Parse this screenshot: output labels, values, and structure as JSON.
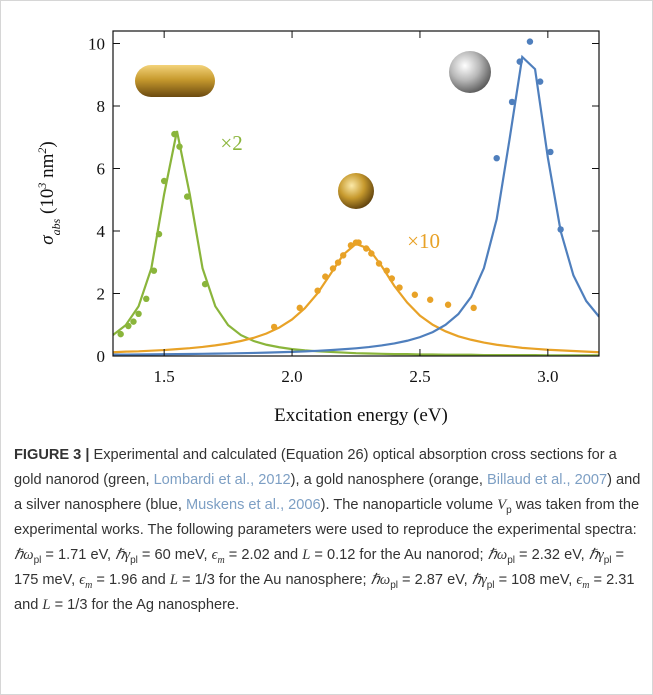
{
  "chart_data": {
    "type": "line",
    "xlabel": "Excitation energy (eV)",
    "ylabel": [
      {
        "text": "σ"
      },
      {
        "text": "abs",
        "shift": "sub"
      },
      {
        "text": " (10"
      },
      {
        "text": "3",
        "shift": "sup"
      },
      {
        "text": " nm"
      },
      {
        "text": "2",
        "shift": "sup"
      },
      {
        "text": ")"
      }
    ],
    "xlim": [
      1.3,
      3.2
    ],
    "ylim": [
      0,
      10.4
    ],
    "xticks": [
      1.5,
      {
        "value": 2,
        "label": "2.0"
      },
      2.5,
      {
        "value": 3,
        "label": "3.0"
      }
    ],
    "yticks": [
      0,
      2,
      4,
      6,
      8,
      10
    ],
    "annotations": [
      {
        "text": "×2",
        "x": 1.72,
        "y": 6.6,
        "color": "#8ab53b"
      },
      {
        "text": "×10",
        "x": 2.45,
        "y": 3.45,
        "color": "#e8a227"
      }
    ],
    "series": [
      {
        "mode": "line",
        "color": "#8ab53b",
        "x": [
          1.3,
          1.35,
          1.4,
          1.45,
          1.5,
          1.55,
          1.6,
          1.65,
          1.7,
          1.75,
          1.8,
          1.85,
          1.9,
          1.95,
          2.0,
          2.05,
          2.1,
          2.15,
          2.2,
          2.25,
          2.3,
          2.35,
          2.4,
          2.45,
          2.5,
          2.55,
          2.6,
          2.65,
          2.7,
          2.75,
          2.8,
          2.85,
          2.9,
          2.95,
          3.0,
          3.05,
          3.1,
          3.15,
          3.2
        ],
        "values": [
          0.67,
          0.99,
          1.59,
          2.81,
          5.18,
          7.2,
          5.18,
          2.81,
          1.59,
          0.99,
          0.67,
          0.48,
          0.36,
          0.28,
          0.22,
          0.18,
          0.15,
          0.13,
          0.11,
          0.09,
          0.08,
          0.07,
          0.06,
          0.06,
          0.05,
          0.05,
          0.04,
          0.04,
          0.04,
          0.03,
          0.03,
          0.03,
          0.03,
          0.03,
          0.02,
          0.02,
          0.02,
          0.02,
          0.02
        ]
      },
      {
        "mode": "line",
        "color": "#e8a227",
        "x": [
          1.3,
          1.35,
          1.4,
          1.45,
          1.5,
          1.55,
          1.6,
          1.65,
          1.7,
          1.75,
          1.8,
          1.85,
          1.9,
          1.95,
          2.0,
          2.05,
          2.1,
          2.15,
          2.2,
          2.25,
          2.3,
          2.35,
          2.4,
          2.45,
          2.5,
          2.55,
          2.6,
          2.65,
          2.7,
          2.75,
          2.8,
          2.85,
          2.9,
          2.95,
          3.0,
          3.05,
          3.1,
          3.15,
          3.2
        ],
        "values": [
          0.12,
          0.14,
          0.15,
          0.17,
          0.19,
          0.22,
          0.25,
          0.29,
          0.34,
          0.4,
          0.48,
          0.58,
          0.72,
          0.91,
          1.17,
          1.53,
          2.01,
          2.62,
          3.24,
          3.59,
          3.43,
          2.88,
          2.24,
          1.71,
          1.29,
          1.0,
          0.79,
          0.63,
          0.52,
          0.43,
          0.36,
          0.31,
          0.26,
          0.23,
          0.2,
          0.18,
          0.16,
          0.14,
          0.12
        ]
      },
      {
        "mode": "line",
        "color": "#4f7fbd",
        "x": [
          1.3,
          1.35,
          1.4,
          1.45,
          1.5,
          1.55,
          1.6,
          1.65,
          1.7,
          1.75,
          1.8,
          1.85,
          1.9,
          1.95,
          2.0,
          2.05,
          2.1,
          2.15,
          2.2,
          2.25,
          2.3,
          2.35,
          2.4,
          2.45,
          2.5,
          2.55,
          2.6,
          2.65,
          2.7,
          2.75,
          2.8,
          2.85,
          2.9,
          2.95,
          3.0,
          3.05,
          3.1,
          3.15,
          3.2
        ],
        "values": [
          0.043,
          0.046,
          0.049,
          0.052,
          0.056,
          0.06,
          0.065,
          0.07,
          0.076,
          0.082,
          0.09,
          0.098,
          0.108,
          0.119,
          0.132,
          0.148,
          0.166,
          0.188,
          0.215,
          0.246,
          0.286,
          0.337,
          0.402,
          0.488,
          0.604,
          0.764,
          0.996,
          1.34,
          1.89,
          2.81,
          4.38,
          6.92,
          9.57,
          9.18,
          6.35,
          4.0,
          2.58,
          1.76,
          1.26
        ]
      },
      {
        "mode": "markers",
        "color": "#8ab53b",
        "x": [
          1.33,
          1.36,
          1.38,
          1.4,
          1.43,
          1.46,
          1.48,
          1.5,
          1.54,
          1.56,
          1.59,
          1.66
        ],
        "values": [
          0.7,
          0.96,
          1.1,
          1.35,
          1.83,
          2.73,
          3.9,
          5.6,
          7.1,
          6.7,
          5.1,
          2.3
        ]
      },
      {
        "mode": "markers",
        "color": "#e8a227",
        "x": [
          1.93,
          2.03,
          2.1,
          2.13,
          2.16,
          2.18,
          2.2,
          2.23,
          2.25,
          2.26,
          2.29,
          2.31,
          2.34,
          2.37,
          2.39,
          2.42,
          2.48,
          2.54,
          2.61,
          2.71
        ],
        "values": [
          0.93,
          1.54,
          2.09,
          2.54,
          2.8,
          2.99,
          3.22,
          3.54,
          3.63,
          3.63,
          3.44,
          3.28,
          2.96,
          2.73,
          2.48,
          2.19,
          1.96,
          1.8,
          1.64,
          1.54
        ]
      },
      {
        "mode": "markers",
        "color": "#4f7fbd",
        "x": [
          2.8,
          2.86,
          2.89,
          2.93,
          2.97,
          3.01,
          3.05
        ],
        "values": [
          6.33,
          8.13,
          9.42,
          10.06,
          8.78,
          6.53,
          4.05
        ]
      }
    ]
  },
  "caption": [
    {
      "text": "FIGURE 3 |",
      "style": "bold"
    },
    {
      "text": " Experimental and calculated (Equation 26) optical absorption cross sections for a gold nanorod (green, "
    },
    {
      "text": "Lombardi et al., 2012",
      "style": "link"
    },
    {
      "text": "), a gold nanosphere (orange, "
    },
    {
      "text": "Billaud et al., 2007",
      "style": "link"
    },
    {
      "text": ") and a silver nanosphere (blue, "
    },
    {
      "text": "Muskens et al., 2006",
      "style": "link"
    },
    {
      "text": "). The nanoparticle volume "
    },
    {
      "text": "V",
      "style": "italic"
    },
    {
      "text": "p",
      "style": "sub"
    },
    {
      "text": " was taken from the experimental works. The following parameters were used to reproduce the experimental spectra: "
    },
    {
      "text": "ℏω",
      "style": "italic"
    },
    {
      "text": "pl",
      "style": "sub"
    },
    {
      "text": " = 1.71 eV, "
    },
    {
      "text": "ℏγ",
      "style": "italic"
    },
    {
      "text": "pl",
      "style": "sub"
    },
    {
      "text": " = 60 meV, "
    },
    {
      "text": "ϵ",
      "style": "italic"
    },
    {
      "text": "m",
      "style": "sub-italic"
    },
    {
      "text": " = 2.02 and "
    },
    {
      "text": "L",
      "style": "italic"
    },
    {
      "text": " = 0.12 for the Au nanorod; "
    },
    {
      "text": "ℏω",
      "style": "italic"
    },
    {
      "text": "pl",
      "style": "sub"
    },
    {
      "text": " = 2.32 eV, "
    },
    {
      "text": "ℏγ",
      "style": "italic"
    },
    {
      "text": "pl",
      "style": "sub"
    },
    {
      "text": " = 175 meV, "
    },
    {
      "text": "ϵ",
      "style": "italic"
    },
    {
      "text": "m",
      "style": "sub-italic"
    },
    {
      "text": " = 1.96 and "
    },
    {
      "text": "L",
      "style": "italic"
    },
    {
      "text": " = 1/3 for the Au nanosphere; "
    },
    {
      "text": "ℏω",
      "style": "italic"
    },
    {
      "text": "pl",
      "style": "sub"
    },
    {
      "text": " = 2.87 eV, "
    },
    {
      "text": "ℏγ",
      "style": "italic"
    },
    {
      "text": "pl",
      "style": "sub"
    },
    {
      "text": " = 108 meV, "
    },
    {
      "text": "ϵ",
      "style": "italic"
    },
    {
      "text": "m",
      "style": "sub-italic"
    },
    {
      "text": " = 2.31 and "
    },
    {
      "text": "L",
      "style": "italic"
    },
    {
      "text": " = 1/3 for the Ag nanosphere."
    }
  ]
}
